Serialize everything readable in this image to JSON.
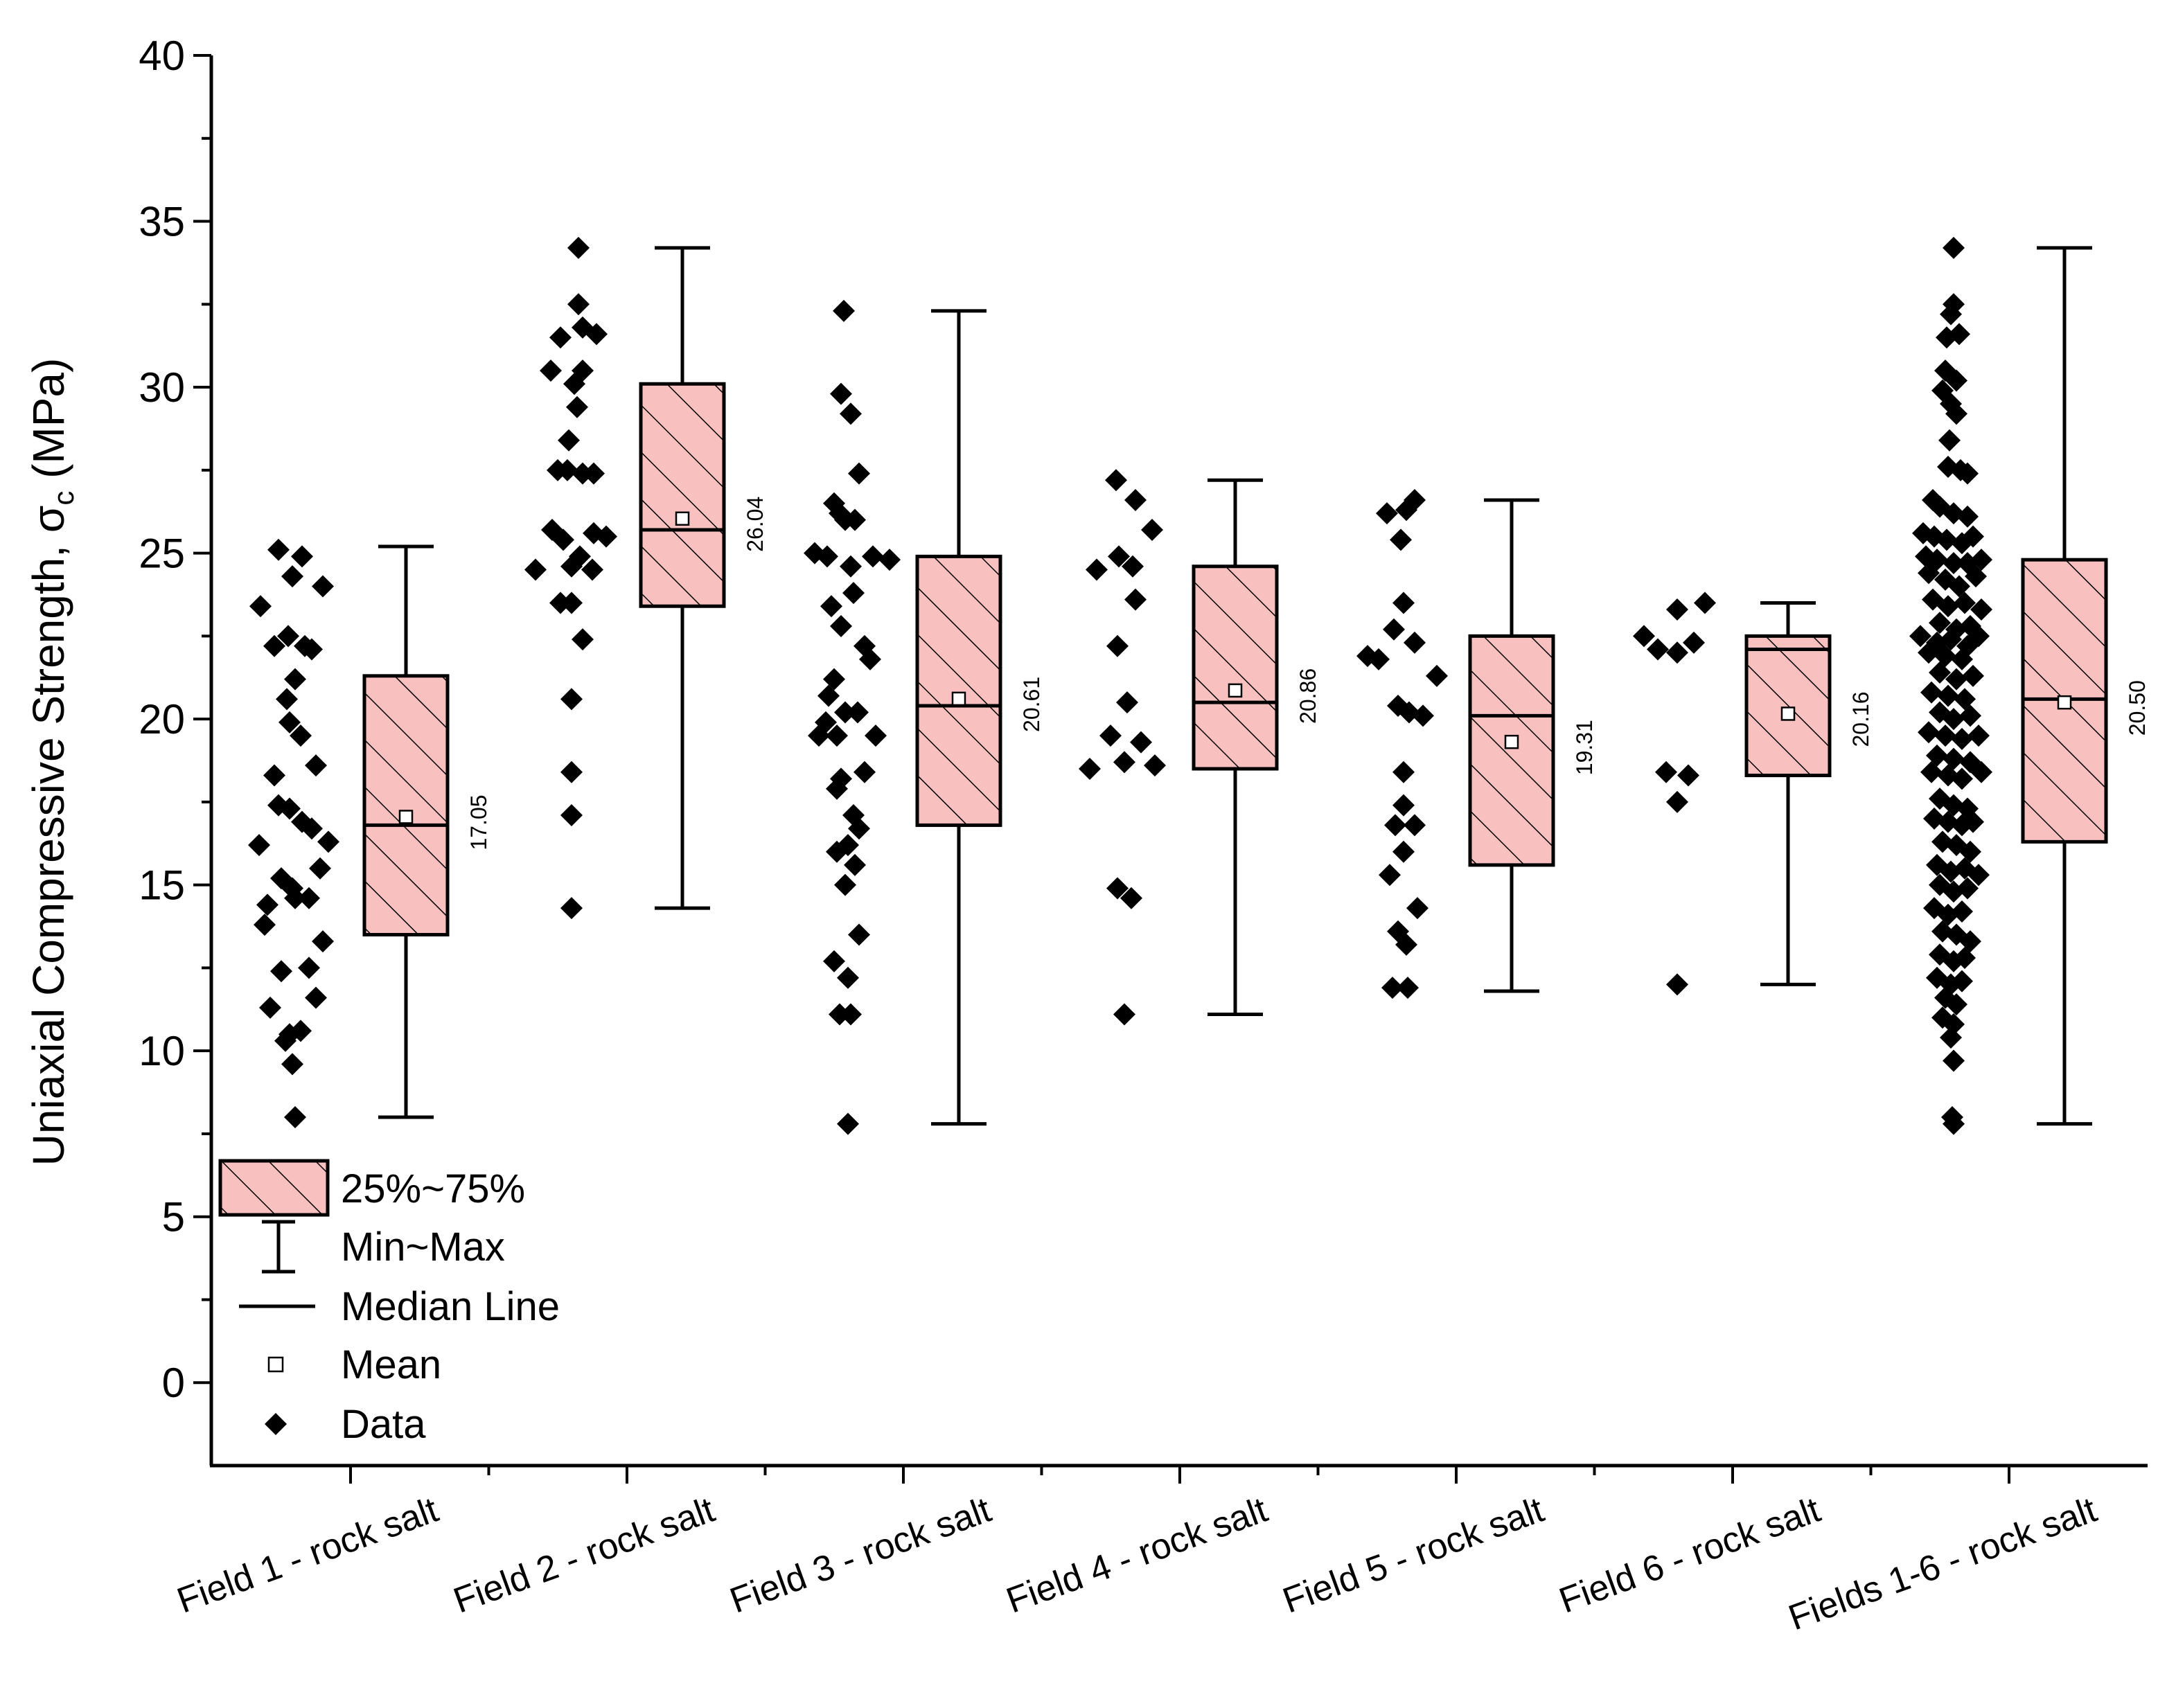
{
  "chart_data": {
    "type": "box",
    "title": "",
    "xlabel": "",
    "ylabel": "Uniaxial Compressive Strength, σc (MPa)",
    "ylabel_main": "Uniaxial Compressive Strength, σ",
    "ylabel_sub": "c",
    "ylabel_unit": " (MPa)",
    "ylim": [
      -2.5,
      40
    ],
    "yticks": [
      0,
      5,
      10,
      15,
      20,
      25,
      30,
      35,
      40
    ],
    "grid": false,
    "colors": {
      "box_fill": "#f9c0c0",
      "stroke": "#000000",
      "data_point": "#000000"
    },
    "categories": [
      "Field 1 - rock salt",
      "Field 2 - rock salt",
      "Field 3 - rock salt",
      "Field 4 - rock salt",
      "Field 5 - rock salt",
      "Field 6 - rock salt",
      "Fields 1-6 - rock salt"
    ],
    "boxes": [
      {
        "min": 8.0,
        "q1": 13.5,
        "median": 16.8,
        "q3": 21.3,
        "max": 25.2,
        "mean": 17.05,
        "mean_label": "17.05"
      },
      {
        "min": 14.3,
        "q1": 23.4,
        "median": 25.7,
        "q3": 30.1,
        "max": 34.2,
        "mean": 26.04,
        "mean_label": "26.04"
      },
      {
        "min": 7.8,
        "q1": 16.8,
        "median": 20.4,
        "q3": 24.9,
        "max": 32.3,
        "mean": 20.61,
        "mean_label": "20.61"
      },
      {
        "min": 11.1,
        "q1": 18.5,
        "median": 20.5,
        "q3": 24.6,
        "max": 27.2,
        "mean": 20.86,
        "mean_label": "20.86"
      },
      {
        "min": 11.8,
        "q1": 15.6,
        "median": 20.1,
        "q3": 22.5,
        "max": 26.6,
        "mean": 19.31,
        "mean_label": "19.31"
      },
      {
        "min": 12.0,
        "q1": 18.3,
        "median": 22.1,
        "q3": 22.5,
        "max": 23.5,
        "mean": 20.16,
        "mean_label": "20.16"
      },
      {
        "min": 7.8,
        "q1": 16.3,
        "median": 20.6,
        "q3": 24.8,
        "max": 34.2,
        "mean": 20.5,
        "mean_label": "20.50"
      }
    ],
    "data_points": [
      [
        {
          "dx": -0.65,
          "y": 23.4
        },
        {
          "dx": -0.52,
          "y": 25.1
        },
        {
          "dx": -0.35,
          "y": 24.9
        },
        {
          "dx": -0.2,
          "y": 24.0
        },
        {
          "dx": -0.42,
          "y": 24.3
        },
        {
          "dx": -0.55,
          "y": 22.2
        },
        {
          "dx": -0.45,
          "y": 22.5
        },
        {
          "dx": -0.33,
          "y": 22.2
        },
        {
          "dx": -0.28,
          "y": 22.1
        },
        {
          "dx": -0.4,
          "y": 21.2
        },
        {
          "dx": -0.46,
          "y": 20.6
        },
        {
          "dx": -0.44,
          "y": 19.9
        },
        {
          "dx": -0.36,
          "y": 19.5
        },
        {
          "dx": -0.55,
          "y": 18.3
        },
        {
          "dx": -0.25,
          "y": 18.6
        },
        {
          "dx": -0.52,
          "y": 17.4
        },
        {
          "dx": -0.44,
          "y": 17.3
        },
        {
          "dx": -0.35,
          "y": 16.9
        },
        {
          "dx": -0.28,
          "y": 16.7
        },
        {
          "dx": -0.66,
          "y": 16.2
        },
        {
          "dx": -0.16,
          "y": 16.3
        },
        {
          "dx": -0.5,
          "y": 15.2
        },
        {
          "dx": -0.42,
          "y": 14.9
        },
        {
          "dx": -0.22,
          "y": 15.5
        },
        {
          "dx": -0.6,
          "y": 14.4
        },
        {
          "dx": -0.4,
          "y": 14.6
        },
        {
          "dx": -0.3,
          "y": 14.6
        },
        {
          "dx": -0.62,
          "y": 13.8
        },
        {
          "dx": -0.2,
          "y": 13.3
        },
        {
          "dx": -0.5,
          "y": 12.4
        },
        {
          "dx": -0.3,
          "y": 12.5
        },
        {
          "dx": -0.58,
          "y": 11.3
        },
        {
          "dx": -0.25,
          "y": 11.6
        },
        {
          "dx": -0.44,
          "y": 10.5
        },
        {
          "dx": -0.47,
          "y": 10.3
        },
        {
          "dx": -0.36,
          "y": 10.6
        },
        {
          "dx": -0.42,
          "y": 9.6
        },
        {
          "dx": -0.4,
          "y": 8.0
        }
      ],
      [
        {
          "dx": -0.35,
          "y": 34.2
        },
        {
          "dx": -0.35,
          "y": 32.5
        },
        {
          "dx": -0.32,
          "y": 31.8
        },
        {
          "dx": -0.48,
          "y": 31.5
        },
        {
          "dx": -0.22,
          "y": 31.6
        },
        {
          "dx": -0.55,
          "y": 30.5
        },
        {
          "dx": -0.32,
          "y": 30.5
        },
        {
          "dx": -0.38,
          "y": 30.1
        },
        {
          "dx": -0.36,
          "y": 29.4
        },
        {
          "dx": -0.42,
          "y": 28.4
        },
        {
          "dx": -0.5,
          "y": 27.5
        },
        {
          "dx": -0.43,
          "y": 27.5
        },
        {
          "dx": -0.32,
          "y": 27.4
        },
        {
          "dx": -0.24,
          "y": 27.4
        },
        {
          "dx": -0.54,
          "y": 25.7
        },
        {
          "dx": -0.46,
          "y": 25.4
        },
        {
          "dx": -0.24,
          "y": 25.6
        },
        {
          "dx": -0.15,
          "y": 25.5
        },
        {
          "dx": -0.34,
          "y": 24.9
        },
        {
          "dx": -0.4,
          "y": 24.6
        },
        {
          "dx": -0.66,
          "y": 24.5
        },
        {
          "dx": -0.25,
          "y": 24.5
        },
        {
          "dx": -0.48,
          "y": 23.5
        },
        {
          "dx": -0.4,
          "y": 23.5
        },
        {
          "dx": -0.32,
          "y": 22.4
        },
        {
          "dx": -0.4,
          "y": 20.6
        },
        {
          "dx": -0.4,
          "y": 18.4
        },
        {
          "dx": -0.4,
          "y": 17.1
        },
        {
          "dx": -0.4,
          "y": 14.3
        }
      ],
      [
        {
          "dx": -0.43,
          "y": 32.3
        },
        {
          "dx": -0.45,
          "y": 29.8
        },
        {
          "dx": -0.38,
          "y": 29.2
        },
        {
          "dx": -0.32,
          "y": 27.4
        },
        {
          "dx": -0.5,
          "y": 26.5
        },
        {
          "dx": -0.46,
          "y": 26.2
        },
        {
          "dx": -0.42,
          "y": 26.0
        },
        {
          "dx": -0.35,
          "y": 26.0
        },
        {
          "dx": -0.64,
          "y": 25.0
        },
        {
          "dx": -0.55,
          "y": 24.9
        },
        {
          "dx": -0.22,
          "y": 24.9
        },
        {
          "dx": -0.1,
          "y": 24.8
        },
        {
          "dx": -0.38,
          "y": 24.6
        },
        {
          "dx": -0.36,
          "y": 23.8
        },
        {
          "dx": -0.52,
          "y": 23.4
        },
        {
          "dx": -0.45,
          "y": 22.8
        },
        {
          "dx": -0.28,
          "y": 22.2
        },
        {
          "dx": -0.24,
          "y": 21.8
        },
        {
          "dx": -0.5,
          "y": 21.2
        },
        {
          "dx": -0.54,
          "y": 20.7
        },
        {
          "dx": -0.42,
          "y": 20.2
        },
        {
          "dx": -0.33,
          "y": 20.2
        },
        {
          "dx": -0.56,
          "y": 19.9
        },
        {
          "dx": -0.61,
          "y": 19.5
        },
        {
          "dx": -0.48,
          "y": 19.5
        },
        {
          "dx": -0.2,
          "y": 19.5
        },
        {
          "dx": -0.28,
          "y": 18.4
        },
        {
          "dx": -0.45,
          "y": 18.2
        },
        {
          "dx": -0.48,
          "y": 17.9
        },
        {
          "dx": -0.36,
          "y": 17.1
        },
        {
          "dx": -0.32,
          "y": 16.7
        },
        {
          "dx": -0.48,
          "y": 16.0
        },
        {
          "dx": -0.4,
          "y": 16.2
        },
        {
          "dx": -0.35,
          "y": 15.6
        },
        {
          "dx": -0.42,
          "y": 15.0
        },
        {
          "dx": -0.32,
          "y": 13.5
        },
        {
          "dx": -0.5,
          "y": 12.7
        },
        {
          "dx": -0.4,
          "y": 12.2
        },
        {
          "dx": -0.46,
          "y": 11.1
        },
        {
          "dx": -0.38,
          "y": 11.1
        },
        {
          "dx": -0.4,
          "y": 7.8
        }
      ],
      [
        {
          "dx": -0.46,
          "y": 27.2
        },
        {
          "dx": -0.32,
          "y": 26.6
        },
        {
          "dx": -0.2,
          "y": 25.7
        },
        {
          "dx": -0.6,
          "y": 24.5
        },
        {
          "dx": -0.44,
          "y": 24.9
        },
        {
          "dx": -0.34,
          "y": 24.6
        },
        {
          "dx": -0.32,
          "y": 23.6
        },
        {
          "dx": -0.45,
          "y": 22.2
        },
        {
          "dx": -0.38,
          "y": 20.5
        },
        {
          "dx": -0.5,
          "y": 19.5
        },
        {
          "dx": -0.28,
          "y": 19.3
        },
        {
          "dx": -0.4,
          "y": 18.7
        },
        {
          "dx": -0.65,
          "y": 18.5
        },
        {
          "dx": -0.18,
          "y": 18.6
        },
        {
          "dx": -0.45,
          "y": 14.9
        },
        {
          "dx": -0.35,
          "y": 14.6
        },
        {
          "dx": -0.4,
          "y": 11.1
        }
      ],
      [
        {
          "dx": -0.3,
          "y": 26.6
        },
        {
          "dx": -0.36,
          "y": 26.3
        },
        {
          "dx": -0.5,
          "y": 26.2
        },
        {
          "dx": -0.4,
          "y": 25.4
        },
        {
          "dx": -0.38,
          "y": 23.5
        },
        {
          "dx": -0.45,
          "y": 22.7
        },
        {
          "dx": -0.3,
          "y": 22.3
        },
        {
          "dx": -0.64,
          "y": 21.9
        },
        {
          "dx": -0.56,
          "y": 21.8
        },
        {
          "dx": -0.14,
          "y": 21.3
        },
        {
          "dx": -0.42,
          "y": 20.4
        },
        {
          "dx": -0.34,
          "y": 20.2
        },
        {
          "dx": -0.24,
          "y": 20.1
        },
        {
          "dx": -0.38,
          "y": 18.4
        },
        {
          "dx": -0.38,
          "y": 17.4
        },
        {
          "dx": -0.44,
          "y": 16.8
        },
        {
          "dx": -0.3,
          "y": 16.8
        },
        {
          "dx": -0.38,
          "y": 16.0
        },
        {
          "dx": -0.48,
          "y": 15.3
        },
        {
          "dx": -0.28,
          "y": 14.3
        },
        {
          "dx": -0.42,
          "y": 13.6
        },
        {
          "dx": -0.36,
          "y": 13.2
        },
        {
          "dx": -0.46,
          "y": 11.9
        },
        {
          "dx": -0.35,
          "y": 11.9
        }
      ],
      [
        {
          "dx": -0.2,
          "y": 23.5
        },
        {
          "dx": -0.4,
          "y": 23.3
        },
        {
          "dx": -0.64,
          "y": 22.5
        },
        {
          "dx": -0.28,
          "y": 22.3
        },
        {
          "dx": -0.54,
          "y": 22.1
        },
        {
          "dx": -0.4,
          "y": 22.0
        },
        {
          "dx": -0.48,
          "y": 18.4
        },
        {
          "dx": -0.32,
          "y": 18.3
        },
        {
          "dx": -0.4,
          "y": 17.5
        },
        {
          "dx": -0.4,
          "y": 12.0
        }
      ],
      [
        {
          "dx": -0.4,
          "y": 34.2
        },
        {
          "dx": -0.4,
          "y": 32.5
        },
        {
          "dx": -0.42,
          "y": 32.2
        },
        {
          "dx": -0.45,
          "y": 31.5
        },
        {
          "dx": -0.36,
          "y": 31.6
        },
        {
          "dx": -0.46,
          "y": 30.5
        },
        {
          "dx": -0.38,
          "y": 30.2
        },
        {
          "dx": -0.48,
          "y": 29.9
        },
        {
          "dx": -0.42,
          "y": 29.5
        },
        {
          "dx": -0.38,
          "y": 29.2
        },
        {
          "dx": -0.43,
          "y": 28.4
        },
        {
          "dx": -0.44,
          "y": 27.6
        },
        {
          "dx": -0.35,
          "y": 27.5
        },
        {
          "dx": -0.3,
          "y": 27.4
        },
        {
          "dx": -0.55,
          "y": 26.6
        },
        {
          "dx": -0.5,
          "y": 26.4
        },
        {
          "dx": -0.4,
          "y": 26.2
        },
        {
          "dx": -0.3,
          "y": 26.1
        },
        {
          "dx": -0.62,
          "y": 25.6
        },
        {
          "dx": -0.54,
          "y": 25.5
        },
        {
          "dx": -0.45,
          "y": 25.4
        },
        {
          "dx": -0.34,
          "y": 25.3
        },
        {
          "dx": -0.26,
          "y": 25.5
        },
        {
          "dx": -0.6,
          "y": 24.9
        },
        {
          "dx": -0.52,
          "y": 24.8
        },
        {
          "dx": -0.4,
          "y": 24.7
        },
        {
          "dx": -0.3,
          "y": 24.7
        },
        {
          "dx": -0.2,
          "y": 24.8
        },
        {
          "dx": -0.58,
          "y": 24.4
        },
        {
          "dx": -0.46,
          "y": 24.2
        },
        {
          "dx": -0.36,
          "y": 24.0
        },
        {
          "dx": -0.24,
          "y": 24.3
        },
        {
          "dx": -0.55,
          "y": 23.6
        },
        {
          "dx": -0.44,
          "y": 23.4
        },
        {
          "dx": -0.32,
          "y": 23.5
        },
        {
          "dx": -0.2,
          "y": 23.3
        },
        {
          "dx": -0.5,
          "y": 22.9
        },
        {
          "dx": -0.38,
          "y": 22.7
        },
        {
          "dx": -0.28,
          "y": 22.8
        },
        {
          "dx": -0.64,
          "y": 22.5
        },
        {
          "dx": -0.52,
          "y": 22.3
        },
        {
          "dx": -0.42,
          "y": 22.4
        },
        {
          "dx": -0.3,
          "y": 22.2
        },
        {
          "dx": -0.22,
          "y": 22.5
        },
        {
          "dx": -0.58,
          "y": 22.0
        },
        {
          "dx": -0.46,
          "y": 21.9
        },
        {
          "dx": -0.34,
          "y": 21.8
        },
        {
          "dx": -0.5,
          "y": 21.4
        },
        {
          "dx": -0.38,
          "y": 21.2
        },
        {
          "dx": -0.26,
          "y": 21.3
        },
        {
          "dx": -0.56,
          "y": 20.8
        },
        {
          "dx": -0.44,
          "y": 20.7
        },
        {
          "dx": -0.32,
          "y": 20.6
        },
        {
          "dx": -0.5,
          "y": 20.2
        },
        {
          "dx": -0.4,
          "y": 20.0
        },
        {
          "dx": -0.28,
          "y": 20.1
        },
        {
          "dx": -0.58,
          "y": 19.6
        },
        {
          "dx": -0.46,
          "y": 19.5
        },
        {
          "dx": -0.34,
          "y": 19.4
        },
        {
          "dx": -0.22,
          "y": 19.5
        },
        {
          "dx": -0.52,
          "y": 18.9
        },
        {
          "dx": -0.4,
          "y": 18.8
        },
        {
          "dx": -0.28,
          "y": 18.7
        },
        {
          "dx": -0.56,
          "y": 18.4
        },
        {
          "dx": -0.44,
          "y": 18.3
        },
        {
          "dx": -0.34,
          "y": 18.2
        },
        {
          "dx": -0.2,
          "y": 18.4
        },
        {
          "dx": -0.5,
          "y": 17.6
        },
        {
          "dx": -0.4,
          "y": 17.4
        },
        {
          "dx": -0.3,
          "y": 17.3
        },
        {
          "dx": -0.54,
          "y": 17.0
        },
        {
          "dx": -0.44,
          "y": 16.9
        },
        {
          "dx": -0.34,
          "y": 16.8
        },
        {
          "dx": -0.26,
          "y": 16.9
        },
        {
          "dx": -0.48,
          "y": 16.3
        },
        {
          "dx": -0.38,
          "y": 16.2
        },
        {
          "dx": -0.28,
          "y": 16.0
        },
        {
          "dx": -0.52,
          "y": 15.6
        },
        {
          "dx": -0.42,
          "y": 15.4
        },
        {
          "dx": -0.32,
          "y": 15.5
        },
        {
          "dx": -0.22,
          "y": 15.3
        },
        {
          "dx": -0.5,
          "y": 15.0
        },
        {
          "dx": -0.4,
          "y": 14.8
        },
        {
          "dx": -0.3,
          "y": 14.9
        },
        {
          "dx": -0.54,
          "y": 14.3
        },
        {
          "dx": -0.44,
          "y": 14.1
        },
        {
          "dx": -0.34,
          "y": 14.2
        },
        {
          "dx": -0.48,
          "y": 13.6
        },
        {
          "dx": -0.38,
          "y": 13.5
        },
        {
          "dx": -0.28,
          "y": 13.3
        },
        {
          "dx": -0.5,
          "y": 12.9
        },
        {
          "dx": -0.4,
          "y": 12.7
        },
        {
          "dx": -0.32,
          "y": 12.8
        },
        {
          "dx": -0.52,
          "y": 12.2
        },
        {
          "dx": -0.42,
          "y": 12.0
        },
        {
          "dx": -0.34,
          "y": 12.1
        },
        {
          "dx": -0.46,
          "y": 11.6
        },
        {
          "dx": -0.38,
          "y": 11.4
        },
        {
          "dx": -0.48,
          "y": 11.0
        },
        {
          "dx": -0.4,
          "y": 10.8
        },
        {
          "dx": -0.42,
          "y": 10.4
        },
        {
          "dx": -0.4,
          "y": 9.7
        },
        {
          "dx": -0.41,
          "y": 8.0
        },
        {
          "dx": -0.4,
          "y": 7.8
        }
      ]
    ],
    "legend": {
      "placement": "bottom-left",
      "items": [
        {
          "label": "25%~75%",
          "symbol": "box"
        },
        {
          "label": "Min~Max",
          "symbol": "whisker"
        },
        {
          "label": "Median Line",
          "symbol": "line"
        },
        {
          "label": "Mean",
          "symbol": "open-square"
        },
        {
          "label": "Data",
          "symbol": "diamond"
        }
      ]
    }
  }
}
